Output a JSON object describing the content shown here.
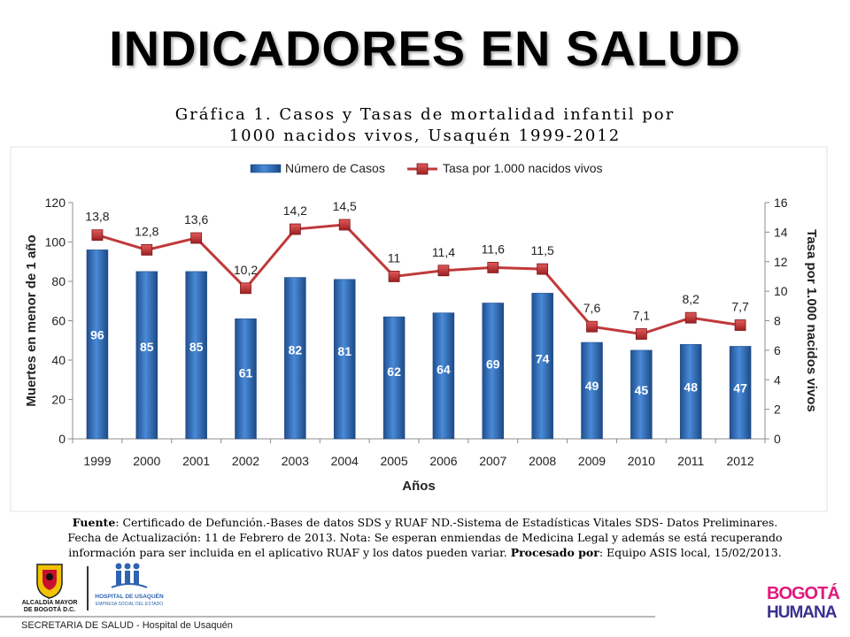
{
  "slide": {
    "title": "INDICADORES EN SALUD",
    "footer": "SECRETARIA DE SALUD - Hospital de Usaquén"
  },
  "chart_data": {
    "type": "bar",
    "title_line1": "Gráfica 1. Casos y Tasas de mortalidad infantil por",
    "title_line2": "1000 nacidos vivos, Usaquén 1999-2012",
    "categories": [
      "1999",
      "2000",
      "2001",
      "2002",
      "2003",
      "2004",
      "2005",
      "2006",
      "2007",
      "2008",
      "2009",
      "2010",
      "2011",
      "2012"
    ],
    "series": [
      {
        "name": "Número de Casos",
        "type": "bar",
        "axis": "left",
        "values": [
          96,
          85,
          85,
          61,
          82,
          81,
          62,
          64,
          69,
          74,
          49,
          45,
          48,
          47
        ],
        "color": "#3a78c4"
      },
      {
        "name": "Tasa por 1.000 nacidos vivos",
        "type": "line",
        "axis": "right",
        "values": [
          13.8,
          12.8,
          13.6,
          10.2,
          14.2,
          14.5,
          11,
          11.4,
          11.6,
          11.5,
          7.6,
          7.1,
          8.2,
          7.7
        ],
        "labels": [
          "13,8",
          "12,8",
          "13,6",
          "10,2",
          "14,2",
          "14,5",
          "11",
          "11,4",
          "11,6",
          "11,5",
          "7,6",
          "7,1",
          "8,2",
          "7,7"
        ],
        "color": "#c0393b"
      }
    ],
    "xlabel": "Años",
    "ylabel": "Muertes en menor de 1 año",
    "y2label": "Tasa por 1.000 nacidos vivos",
    "ylim": [
      0,
      120
    ],
    "yticks": [
      0,
      20,
      40,
      60,
      80,
      100,
      120
    ],
    "y2lim": [
      0,
      16
    ],
    "y2ticks": [
      0,
      2,
      4,
      6,
      8,
      10,
      12,
      14,
      16
    ],
    "legend": "top",
    "grid": false
  },
  "note": {
    "source_label": "Fuente",
    "source_text": ": Certificado de Defunción.-Bases de datos SDS y RUAF ND.-Sistema de Estadísticas Vitales SDS- Datos Preliminares.",
    "line2": "Fecha de Actualización: 11 de Febrero de 2013. Nota: Se esperan enmiendas de Medicina Legal y además se está recuperando",
    "line3_a": "información para ser incluida en el aplicativo RUAF y los datos pueden variar. ",
    "processed_label": "Procesado por",
    "line3_b": ": Equipo ASIS local, 15/02/2013."
  },
  "logos": {
    "alcaldia_line1": "ALCALDÍA MAYOR",
    "alcaldia_line2": "DE BOGOTÁ D.C.",
    "hospital_line1": "HOSPITAL DE USAQUÉN",
    "hospital_line2": "EMPRESA SOCIAL DEL ESTADO",
    "bogota_line1": "BOGOTÁ",
    "bogota_line2": "HUMANA"
  }
}
